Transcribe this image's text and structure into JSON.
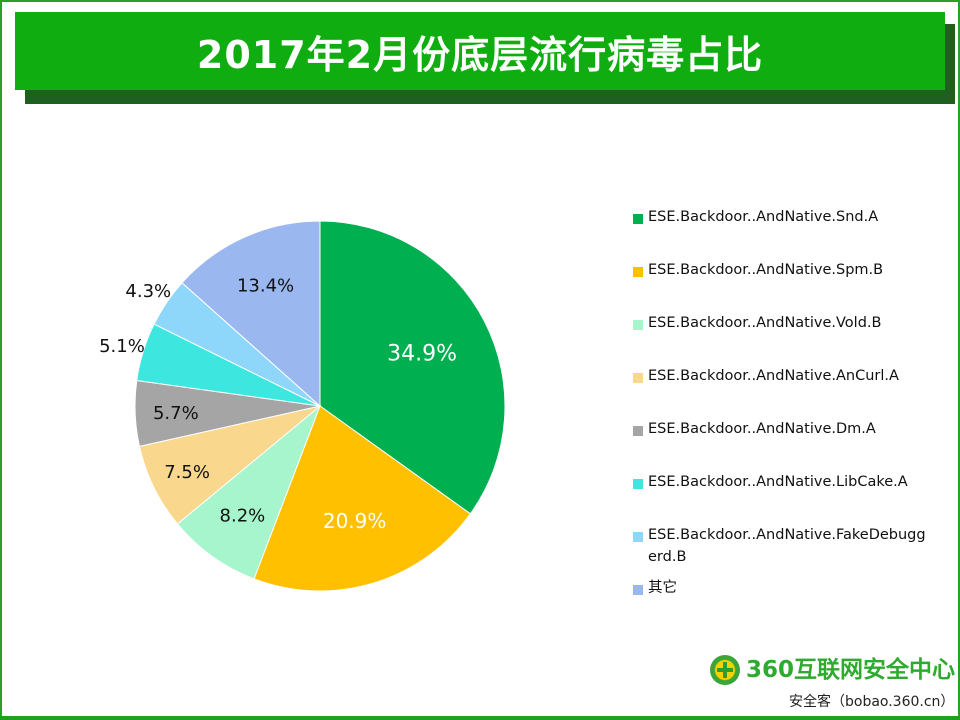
{
  "chart_data": {
    "type": "pie",
    "title": "2017年2月份底层流行病毒占比",
    "start": "top, clockwise",
    "legend_position": "right",
    "slices": [
      {
        "label": "ESE.Backdoor..AndNative.Snd.A",
        "value": 34.9,
        "display": "34.9%",
        "color": "#00b050"
      },
      {
        "label": "ESE.Backdoor..AndNative.Spm.B",
        "value": 20.9,
        "display": "20.9%",
        "color": "#ffc000"
      },
      {
        "label": "ESE.Backdoor..AndNative.Vold.B",
        "value": 8.2,
        "display": "8.2%",
        "color": "#a6f5cd"
      },
      {
        "label": "ESE.Backdoor..AndNative.AnCurl.A",
        "value": 7.5,
        "display": "7.5%",
        "color": "#f9d78d"
      },
      {
        "label": "ESE.Backdoor..AndNative.Dm.A",
        "value": 5.7,
        "display": "5.7%",
        "color": "#a5a5a5"
      },
      {
        "label": "ESE.Backdoor..AndNative.LibCake.A",
        "value": 5.1,
        "display": "5.1%",
        "color": "#3ee6e0"
      },
      {
        "label": "ESE.Backdoor..AndNative.FakeDebuggerd.B",
        "value": 4.3,
        "display": "4.3%",
        "color": "#8fd6fb"
      },
      {
        "label": "其它",
        "value": 13.4,
        "display": "13.4%",
        "color": "#9ab7ef"
      }
    ]
  },
  "legend_items": [
    "ESE.Backdoor..AndNative.Snd.A",
    "ESE.Backdoor..AndNative.Spm.B",
    "ESE.Backdoor..AndNative.Vold.B",
    "ESE.Backdoor..AndNative.AnCurl.A",
    "ESE.Backdoor..AndNative.Dm.A",
    "ESE.Backdoor..AndNative.LibCake.A",
    "ESE.Backdoor..AndNative.FakeDebuggerd.B",
    "其它"
  ],
  "logo": {
    "text": "360互联网安全中心",
    "subtitle": "安全客（bobao.360.cn）"
  }
}
